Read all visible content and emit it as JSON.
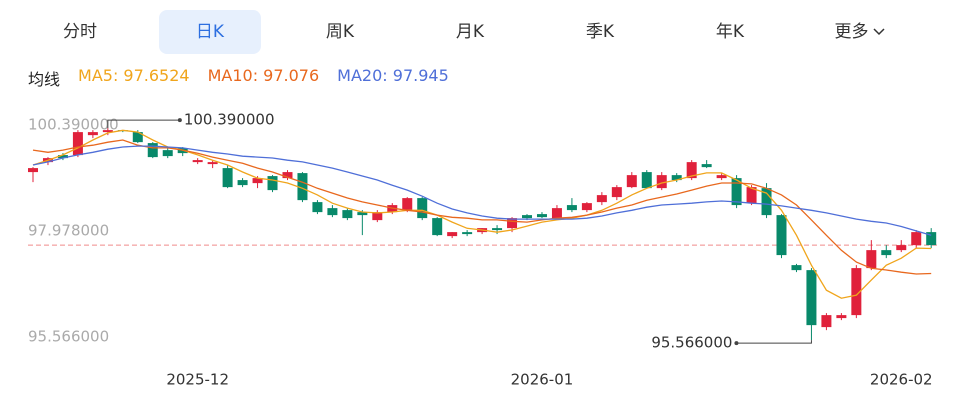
{
  "tabs": {
    "items": [
      "分时",
      "日K",
      "周K",
      "月K",
      "季K",
      "年K",
      "更多"
    ],
    "active": "日K"
  },
  "chart_data": {
    "type": "candlestick",
    "indicator_label": "均线",
    "up_color": "#e0213b",
    "down_color": "#08896a",
    "categories": [
      null,
      null,
      null,
      null,
      null,
      null,
      null,
      null,
      null,
      null,
      null,
      "2025-12",
      null,
      null,
      null,
      null,
      null,
      null,
      null,
      null,
      null,
      null,
      null,
      null,
      null,
      null,
      null,
      null,
      null,
      null,
      null,
      null,
      null,
      null,
      "2026-01",
      null,
      null,
      null,
      null,
      null,
      null,
      null,
      null,
      null,
      null,
      null,
      null,
      null,
      null,
      null,
      null,
      null,
      null,
      null,
      null,
      null,
      null,
      null,
      "2026-02",
      null,
      null
    ],
    "ohlc": [
      [
        99.389,
        99.502,
        99.161,
        99.48
      ],
      [
        99.616,
        99.73,
        99.548,
        99.707
      ],
      [
        99.776,
        99.821,
        99.662,
        99.707
      ],
      [
        99.776,
        100.344,
        99.73,
        100.299
      ],
      [
        100.23,
        100.344,
        100.162,
        100.299
      ],
      [
        100.299,
        100.39,
        100.23,
        100.344
      ],
      [
        100.344,
        100.344,
        100.299,
        100.322
      ],
      [
        100.299,
        100.344,
        100.049,
        100.071
      ],
      [
        100.049,
        100.071,
        99.707,
        99.73
      ],
      [
        99.889,
        99.935,
        99.707,
        99.753
      ],
      [
        99.935,
        99.958,
        99.753,
        99.821
      ],
      [
        99.616,
        99.707,
        99.571,
        99.662
      ],
      [
        99.571,
        99.662,
        99.48,
        99.616
      ],
      [
        99.48,
        99.548,
        99.024,
        99.047
      ],
      [
        99.207,
        99.252,
        99.047,
        99.093
      ],
      [
        99.138,
        99.298,
        99.024,
        99.252
      ],
      [
        99.298,
        99.32,
        98.933,
        98.979
      ],
      [
        99.252,
        99.434,
        99.207,
        99.389
      ],
      [
        99.366,
        99.389,
        98.706,
        98.751
      ],
      [
        98.706,
        98.751,
        98.433,
        98.478
      ],
      [
        98.569,
        98.638,
        98.364,
        98.41
      ],
      [
        98.524,
        98.569,
        98.296,
        98.342
      ],
      [
        98.478,
        98.524,
        97.955,
        98.41
      ],
      [
        98.296,
        98.524,
        98.251,
        98.478
      ],
      [
        98.478,
        98.683,
        98.433,
        98.638
      ],
      [
        98.524,
        98.82,
        98.478,
        98.797
      ],
      [
        98.797,
        98.82,
        98.296,
        98.342
      ],
      [
        98.342,
        98.364,
        97.932,
        97.955
      ],
      [
        97.932,
        98.023,
        97.887,
        98.023
      ],
      [
        98.023,
        98.069,
        97.932,
        97.978
      ],
      [
        98.023,
        98.114,
        97.978,
        98.114
      ],
      [
        98.114,
        98.182,
        97.978,
        98.069
      ],
      [
        98.114,
        98.364,
        98.023,
        98.342
      ],
      [
        98.41,
        98.433,
        98.296,
        98.342
      ],
      [
        98.433,
        98.478,
        98.342,
        98.364
      ],
      [
        98.342,
        98.638,
        98.296,
        98.569
      ],
      [
        98.638,
        98.797,
        98.478,
        98.524
      ],
      [
        98.524,
        98.706,
        98.478,
        98.683
      ],
      [
        98.706,
        98.933,
        98.638,
        98.865
      ],
      [
        98.82,
        99.093,
        98.751,
        99.047
      ],
      [
        99.047,
        99.389,
        99.024,
        99.32
      ],
      [
        99.389,
        99.434,
        99.024,
        99.024
      ],
      [
        99.024,
        99.389,
        98.979,
        99.32
      ],
      [
        99.32,
        99.366,
        99.161,
        99.207
      ],
      [
        99.252,
        99.662,
        99.207,
        99.616
      ],
      [
        99.571,
        99.662,
        99.48,
        99.502
      ],
      [
        99.252,
        99.366,
        99.207,
        99.32
      ],
      [
        99.252,
        99.32,
        98.569,
        98.638
      ],
      [
        98.683,
        99.093,
        98.638,
        99.047
      ],
      [
        99.024,
        99.138,
        98.342,
        98.41
      ],
      [
        98.41,
        98.433,
        97.431,
        97.5
      ],
      [
        97.272,
        97.3,
        97.113,
        97.158
      ],
      [
        97.158,
        97.204,
        95.566,
        95.906
      ],
      [
        95.861,
        96.18,
        95.792,
        96.134
      ],
      [
        96.066,
        96.18,
        96.02,
        96.134
      ],
      [
        96.134,
        97.272,
        96.066,
        97.204
      ],
      [
        97.204,
        97.841,
        97.158,
        97.613
      ],
      [
        97.613,
        97.727,
        97.431,
        97.5
      ],
      [
        97.613,
        97.841,
        97.568,
        97.727
      ],
      [
        97.727,
        98.069,
        97.659,
        98.023
      ],
      [
        98.023,
        98.114,
        97.659,
        97.727
      ]
    ],
    "series": [
      {
        "name": "MA5: 97.6524",
        "color": "#f0a51c",
        "values": [
          99.55,
          99.66,
          99.78,
          99.94,
          100.12,
          100.28,
          100.34,
          100.3,
          100.12,
          99.96,
          99.89,
          99.78,
          99.66,
          99.55,
          99.39,
          99.25,
          99.21,
          99.14,
          99.02,
          98.87,
          98.68,
          98.57,
          98.48,
          98.46,
          98.48,
          98.52,
          98.52,
          98.41,
          98.25,
          98.11,
          98.07,
          98.02,
          98.07,
          98.16,
          98.25,
          98.3,
          98.34,
          98.41,
          98.52,
          98.68,
          98.87,
          99.02,
          99.14,
          99.21,
          99.3,
          99.37,
          99.37,
          99.21,
          99.02,
          98.91,
          98.52,
          97.95,
          97.27,
          96.7,
          96.52,
          96.59,
          96.93,
          97.27,
          97.43,
          97.66,
          97.65
        ]
      },
      {
        "name": "MA10: 97.076",
        "color": "#e8681e",
        "values": [
          99.89,
          99.84,
          99.89,
          99.96,
          100.0,
          100.07,
          100.12,
          100.0,
          99.94,
          99.94,
          99.89,
          99.82,
          99.73,
          99.66,
          99.59,
          99.48,
          99.39,
          99.27,
          99.16,
          99.02,
          98.91,
          98.8,
          98.71,
          98.64,
          98.57,
          98.52,
          98.48,
          98.41,
          98.36,
          98.34,
          98.3,
          98.3,
          98.27,
          98.25,
          98.3,
          98.34,
          98.36,
          98.41,
          98.48,
          98.57,
          98.64,
          98.75,
          98.82,
          98.89,
          98.98,
          99.07,
          99.14,
          99.14,
          99.12,
          99.02,
          98.87,
          98.64,
          98.3,
          97.95,
          97.61,
          97.34,
          97.2,
          97.16,
          97.11,
          97.07,
          97.08
        ]
      },
      {
        "name": "MA20: 97.945",
        "color": "#4f6fd8",
        "values": [
          99.55,
          99.62,
          99.71,
          99.78,
          99.84,
          99.91,
          99.96,
          99.98,
          99.98,
          99.96,
          99.94,
          99.89,
          99.84,
          99.8,
          99.75,
          99.73,
          99.71,
          99.66,
          99.62,
          99.55,
          99.48,
          99.39,
          99.3,
          99.21,
          99.09,
          98.98,
          98.84,
          98.68,
          98.55,
          98.46,
          98.39,
          98.34,
          98.32,
          98.32,
          98.32,
          98.32,
          98.32,
          98.34,
          98.39,
          98.46,
          98.52,
          98.59,
          98.64,
          98.66,
          98.68,
          98.71,
          98.73,
          98.71,
          98.68,
          98.66,
          98.62,
          98.57,
          98.52,
          98.46,
          98.39,
          98.32,
          98.27,
          98.23,
          98.15,
          98.05,
          97.95
        ]
      }
    ],
    "ylim": [
      95.34,
      100.62
    ],
    "yticks": [
      {
        "value": 100.39,
        "label": "100.390000"
      },
      {
        "value": 97.978,
        "label": "97.978000"
      },
      {
        "value": 95.566,
        "label": "95.566000"
      }
    ],
    "price_line": {
      "value": 97.727,
      "color": "#f08a8a"
    },
    "annotations": [
      {
        "value": 100.39,
        "label": "100.390000"
      },
      {
        "value": 95.566,
        "label": "95.566000"
      }
    ]
  }
}
